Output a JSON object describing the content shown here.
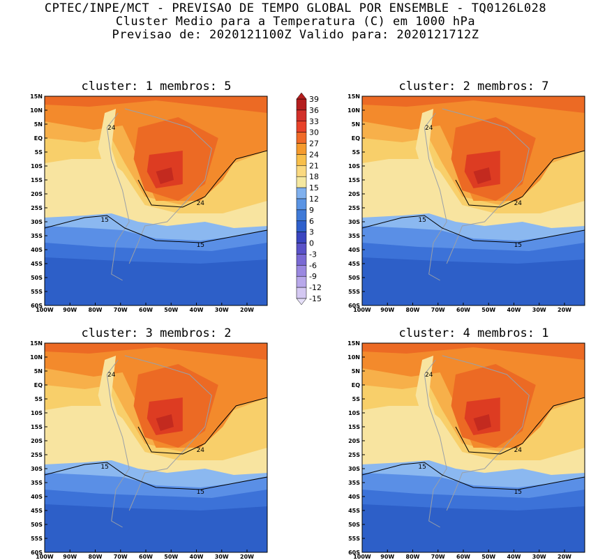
{
  "header": {
    "line1": "CPTEC/INPE/MCT - PREVISAO DE TEMPO GLOBAL POR ENSEMBLE - TQ0126L028",
    "line2": "Cluster Medio para a Temperatura (C) em 1000 hPa",
    "line3": "Previsao de: 2020121100Z   Valido para: 2020121712Z"
  },
  "panels": [
    {
      "title": "cluster: 1   membros: 5"
    },
    {
      "title": "cluster: 2   membros: 7"
    },
    {
      "title": "cluster: 3   membros: 2"
    },
    {
      "title": "cluster: 4   membros: 1"
    }
  ],
  "lat_ticks": [
    "15N",
    "10N",
    "5N",
    "EQ",
    "5S",
    "10S",
    "15S",
    "20S",
    "25S",
    "30S",
    "35S",
    "40S",
    "45S",
    "50S",
    "55S",
    "60S"
  ],
  "lon_ticks": [
    "100W",
    "90W",
    "80W",
    "70W",
    "60W",
    "50W",
    "40W",
    "30W",
    "20W"
  ],
  "colorbar": {
    "levels": [
      "39",
      "36",
      "33",
      "30",
      "27",
      "24",
      "21",
      "18",
      "15",
      "12",
      "9",
      "6",
      "3",
      "0",
      "-3",
      "-6",
      "-9",
      "-12",
      "-15"
    ],
    "colors": [
      "#b41e1e",
      "#d2302a",
      "#e8422a",
      "#f06a28",
      "#f59a2c",
      "#f8bf4a",
      "#fad980",
      "#f5e8a0",
      "#7fb0ee",
      "#5a94e4",
      "#3f7ad8",
      "#2f60cc",
      "#3a45c0",
      "#5a52c8",
      "#7a6ad4",
      "#9a88e0",
      "#b8a8ea",
      "#d4c8f2"
    ]
  },
  "contour_labels": {
    "c24": "24",
    "c15": "15"
  }
}
